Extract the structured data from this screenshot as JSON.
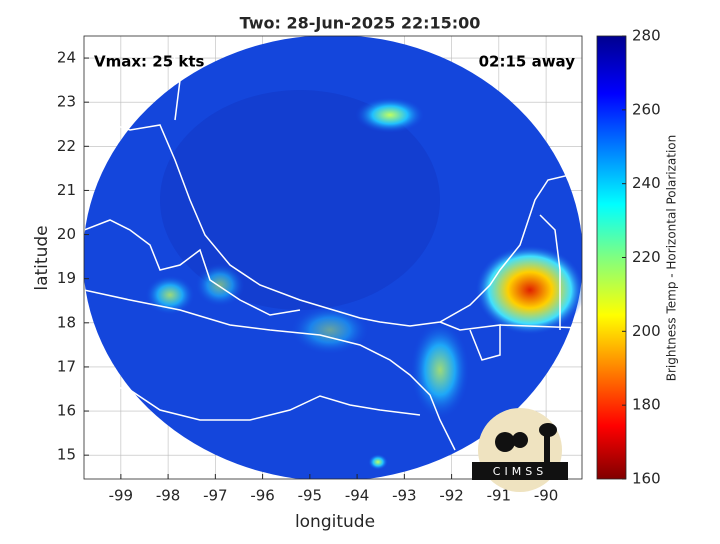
{
  "map": {
    "title": "Two: 28-Jun-2025 22:15:00",
    "xlabel": "longitude",
    "ylabel": "latitude",
    "xlim": [
      -99.78,
      -89.24
    ],
    "ylim": [
      14.46,
      24.5
    ],
    "xticks": [
      -99,
      -98,
      -97,
      -96,
      -95,
      -94,
      -93,
      -92,
      -91,
      -90
    ],
    "yticks": [
      15,
      16,
      17,
      18,
      19,
      20,
      21,
      22,
      23,
      24
    ],
    "annotations": {
      "vmax": "Vmax: 25 kts",
      "away": "02:15 away"
    },
    "colorbar": {
      "label": "Brightness Temp - Horizontal Polarization",
      "lim": [
        160,
        280
      ],
      "ticks": [
        160,
        180,
        200,
        220,
        240,
        260,
        280
      ]
    },
    "logo": "CIMSS"
  }
}
